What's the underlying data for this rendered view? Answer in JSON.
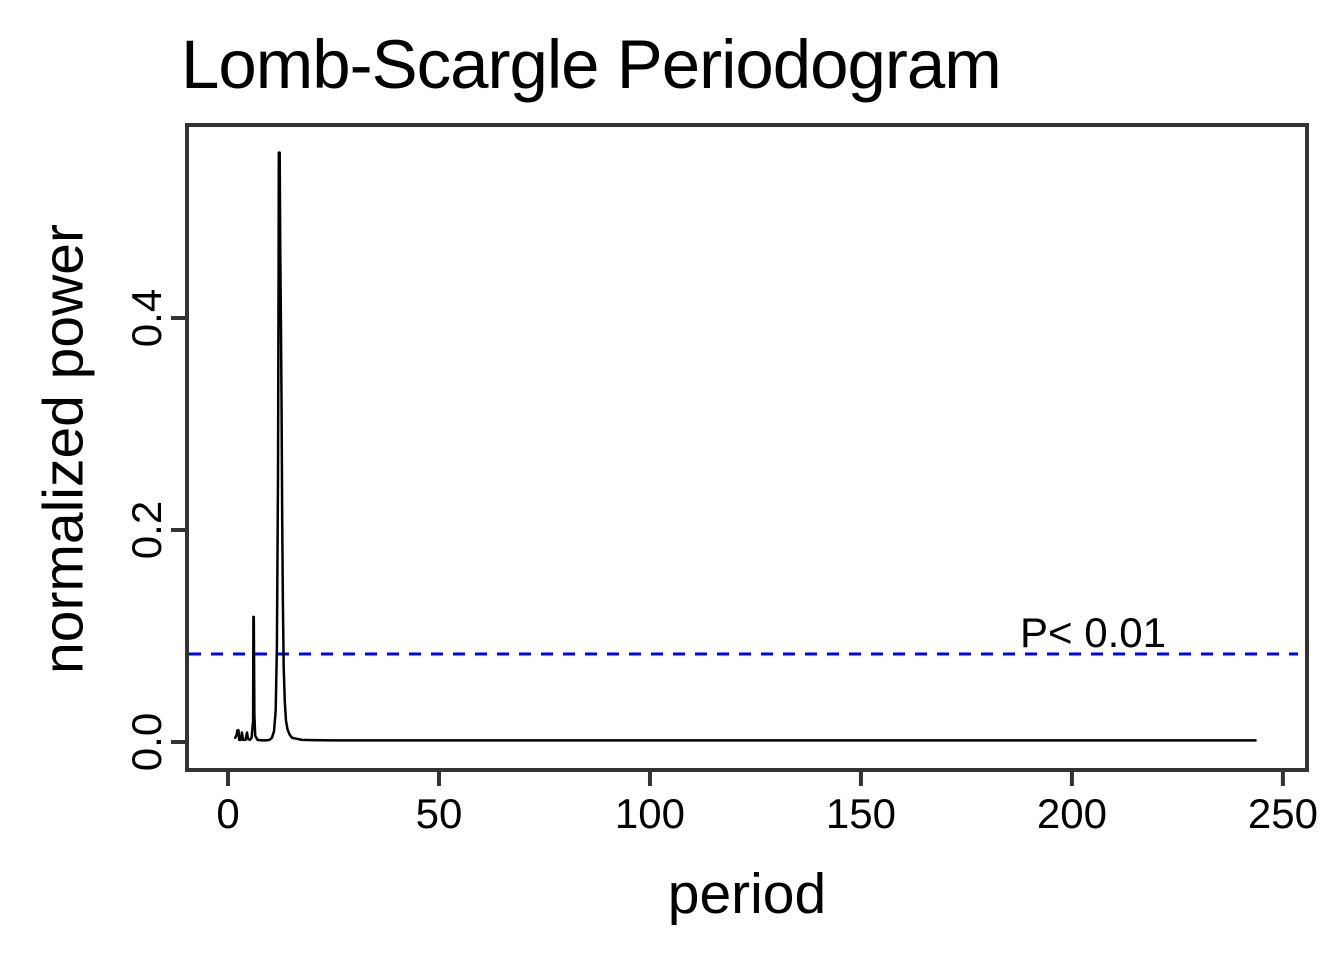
{
  "chart_data": {
    "type": "line",
    "title": "Lomb-Scargle Periodogram",
    "xlabel": "period",
    "ylabel": "normalized power",
    "grid": false,
    "legend": null,
    "xlim": [
      -10,
      256
    ],
    "ylim": [
      -0.026,
      0.582
    ],
    "x_ticks": [
      {
        "value": 0,
        "label": "0"
      },
      {
        "value": 50,
        "label": "50"
      },
      {
        "value": 100,
        "label": "100"
      },
      {
        "value": 150,
        "label": "150"
      },
      {
        "value": 200,
        "label": "200"
      },
      {
        "value": 250,
        "label": "250"
      }
    ],
    "y_ticks": [
      {
        "value": 0.0,
        "label": "0.0"
      },
      {
        "value": 0.2,
        "label": "0.2"
      },
      {
        "value": 0.4,
        "label": "0.4"
      }
    ],
    "threshold": {
      "value": 0.083,
      "label": "P< 0.01",
      "color": "#0000EE",
      "line_style": "dashed"
    },
    "peaks": {
      "main": {
        "period": 12.1,
        "power": 0.556
      },
      "harmonic": {
        "period": 6.1,
        "power": 0.118
      }
    },
    "series": [
      {
        "name": "periodogram",
        "color": "#000000",
        "points": [
          [
            1.7,
            0.004
          ],
          [
            2.0,
            0.006
          ],
          [
            2.25,
            0.011
          ],
          [
            2.5,
            0.011
          ],
          [
            2.65,
            0.002
          ],
          [
            3.05,
            0.002
          ],
          [
            3.3,
            0.009
          ],
          [
            3.55,
            0.002
          ],
          [
            4.15,
            0.002
          ],
          [
            4.5,
            0.009
          ],
          [
            4.75,
            0.003
          ],
          [
            5.2,
            0.002
          ],
          [
            5.6,
            0.004
          ],
          [
            5.95,
            0.02
          ],
          [
            6.02,
            0.118
          ],
          [
            6.12,
            0.118
          ],
          [
            6.25,
            0.025
          ],
          [
            6.45,
            0.006
          ],
          [
            7.0,
            0.002
          ],
          [
            8.0,
            0.0015
          ],
          [
            9.0,
            0.0015
          ],
          [
            9.8,
            0.002
          ],
          [
            10.4,
            0.004
          ],
          [
            10.9,
            0.01
          ],
          [
            11.3,
            0.03
          ],
          [
            11.6,
            0.09
          ],
          [
            11.85,
            0.25
          ],
          [
            12.0,
            0.45
          ],
          [
            12.05,
            0.556
          ],
          [
            12.25,
            0.556
          ],
          [
            12.4,
            0.46
          ],
          [
            12.55,
            0.39
          ],
          [
            12.7,
            0.31
          ],
          [
            12.85,
            0.21
          ],
          [
            13.0,
            0.13
          ],
          [
            13.2,
            0.07
          ],
          [
            13.45,
            0.038
          ],
          [
            13.75,
            0.02
          ],
          [
            14.1,
            0.012
          ],
          [
            14.6,
            0.007
          ],
          [
            15.2,
            0.004
          ],
          [
            16.3,
            0.003
          ],
          [
            17.5,
            0.002
          ],
          [
            20.0,
            0.0018
          ],
          [
            25.0,
            0.0015
          ],
          [
            35.0,
            0.0015
          ],
          [
            50.0,
            0.0015
          ],
          [
            75.0,
            0.0015
          ],
          [
            100.0,
            0.0015
          ],
          [
            130.0,
            0.0015
          ],
          [
            160.0,
            0.0015
          ],
          [
            190.0,
            0.0015
          ],
          [
            215.0,
            0.0015
          ],
          [
            243.5,
            0.0015
          ]
        ]
      }
    ]
  }
}
